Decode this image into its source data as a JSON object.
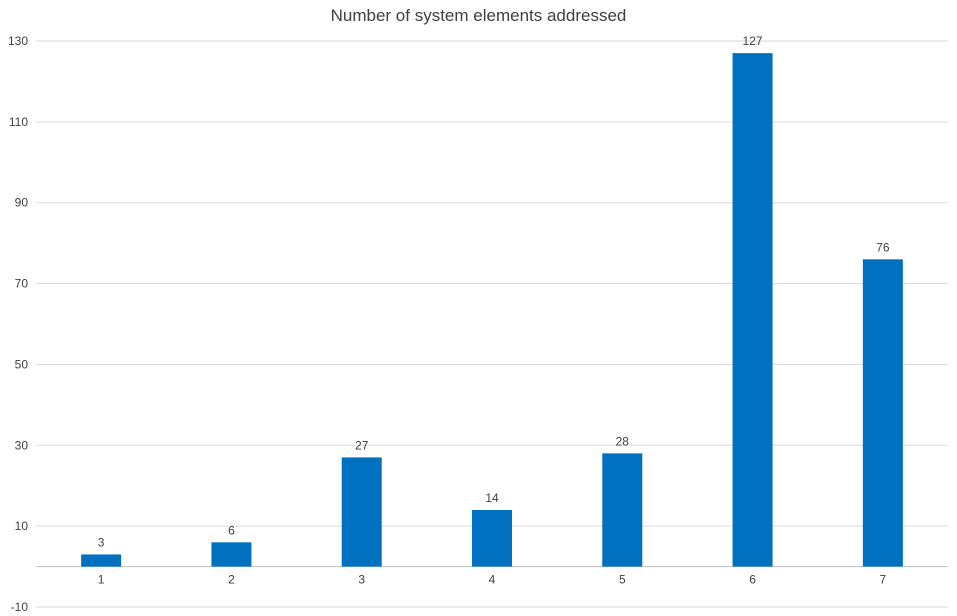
{
  "chart_data": {
    "type": "bar",
    "title": "Number of system elements addressed",
    "xlabel": "",
    "ylabel": "",
    "categories": [
      "1",
      "2",
      "3",
      "4",
      "5",
      "6",
      "7"
    ],
    "values": [
      3,
      6,
      27,
      14,
      28,
      127,
      76
    ],
    "data_labels": [
      "3",
      "6",
      "27",
      "14",
      "28",
      "127",
      "76"
    ],
    "ylim": [
      -10,
      130
    ],
    "y_ticks": [
      "130",
      "110",
      "90",
      "70",
      "50",
      "30",
      "10",
      "-10"
    ],
    "y_tick_values": [
      130,
      110,
      90,
      70,
      50,
      30,
      10,
      -10
    ],
    "grid": true,
    "legend": "none",
    "bar_color": "#0070c0",
    "grid_color": "#d9d9d9",
    "axis_color": "#bfbfbf"
  }
}
